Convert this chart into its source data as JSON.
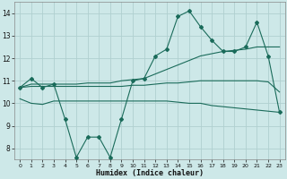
{
  "xlabel": "Humidex (Indice chaleur)",
  "xlim": [
    -0.5,
    23.5
  ],
  "ylim": [
    7.5,
    14.5
  ],
  "xticks": [
    0,
    1,
    2,
    3,
    4,
    5,
    6,
    7,
    8,
    9,
    10,
    11,
    12,
    13,
    14,
    15,
    16,
    17,
    18,
    19,
    20,
    21,
    22,
    23
  ],
  "yticks": [
    8,
    9,
    10,
    11,
    12,
    13,
    14
  ],
  "bg_color": "#cde8e8",
  "grid_color": "#b0d0d0",
  "line_color": "#1a6b5a",
  "line1_x": [
    0,
    1,
    2,
    3,
    4,
    5,
    6,
    7,
    8,
    9,
    10,
    11,
    12,
    13,
    14,
    15,
    16,
    17,
    18,
    19,
    20,
    21,
    22,
    23
  ],
  "line1_y": [
    10.7,
    11.1,
    10.7,
    10.85,
    9.3,
    7.6,
    8.5,
    8.5,
    7.6,
    9.3,
    11.0,
    11.1,
    12.1,
    12.4,
    13.85,
    14.1,
    13.4,
    12.8,
    12.3,
    12.3,
    12.5,
    13.6,
    12.1,
    9.6
  ],
  "line2_x": [
    0,
    1,
    3,
    4,
    5,
    6,
    7,
    8,
    9,
    10,
    11,
    12,
    13,
    14,
    15,
    16,
    17,
    18,
    19,
    20,
    21,
    22,
    23
  ],
  "line2_y": [
    10.7,
    10.85,
    10.85,
    10.85,
    10.85,
    10.9,
    10.9,
    10.9,
    11.0,
    11.05,
    11.1,
    11.3,
    11.5,
    11.7,
    11.9,
    12.1,
    12.2,
    12.3,
    12.35,
    12.4,
    12.5,
    12.5,
    12.5
  ],
  "line3_x": [
    0,
    1,
    3,
    4,
    5,
    6,
    7,
    8,
    9,
    10,
    11,
    12,
    13,
    14,
    15,
    16,
    17,
    18,
    19,
    20,
    21,
    22,
    23
  ],
  "line3_y": [
    10.7,
    10.75,
    10.75,
    10.75,
    10.75,
    10.75,
    10.75,
    10.75,
    10.75,
    10.8,
    10.8,
    10.85,
    10.9,
    10.9,
    10.95,
    11.0,
    11.0,
    11.0,
    11.0,
    11.0,
    11.0,
    10.95,
    10.5
  ],
  "line4_x": [
    0,
    1,
    2,
    3,
    4,
    5,
    6,
    7,
    8,
    9,
    10,
    11,
    12,
    13,
    14,
    15,
    16,
    17,
    18,
    19,
    20,
    21,
    22,
    23
  ],
  "line4_y": [
    10.2,
    10.0,
    9.95,
    10.1,
    10.1,
    10.1,
    10.1,
    10.1,
    10.1,
    10.1,
    10.1,
    10.1,
    10.1,
    10.1,
    10.05,
    10.0,
    10.0,
    9.9,
    9.85,
    9.8,
    9.75,
    9.7,
    9.65,
    9.6
  ]
}
